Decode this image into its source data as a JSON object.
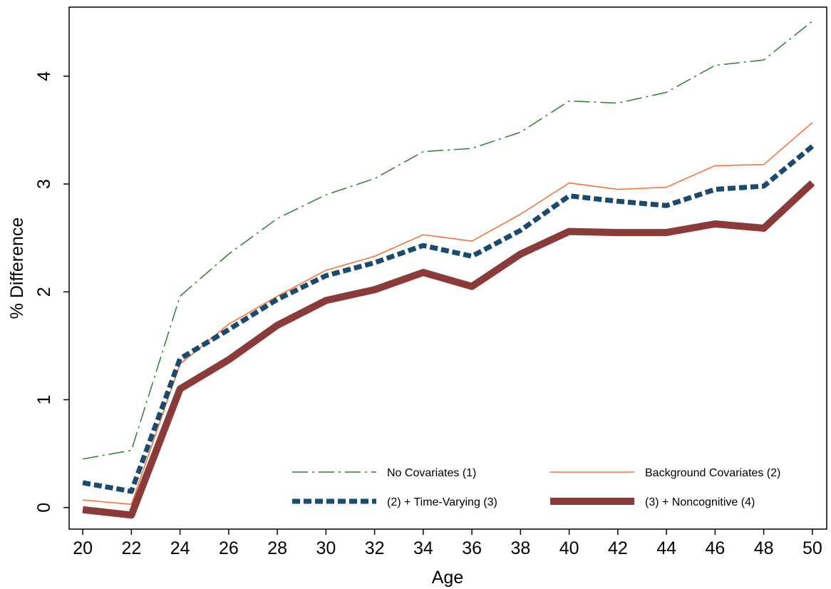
{
  "chart_data": {
    "type": "line",
    "x_label": "Age",
    "y_label": "% Difference",
    "x": [
      20,
      22,
      24,
      26,
      28,
      30,
      32,
      34,
      36,
      38,
      40,
      42,
      44,
      46,
      48,
      50
    ],
    "series": [
      {
        "name": "No Covariates (1)",
        "color": "#2e7d32",
        "values": [
          0.45,
          0.53,
          1.96,
          2.35,
          2.68,
          2.9,
          3.05,
          3.3,
          3.33,
          3.48,
          3.77,
          3.75,
          3.85,
          4.1,
          4.15,
          4.51
        ]
      },
      {
        "name": "Background Covariates (2)",
        "color": "#f4743b",
        "values": [
          0.07,
          0.03,
          1.33,
          1.7,
          1.96,
          2.2,
          2.33,
          2.53,
          2.47,
          2.72,
          3.01,
          2.95,
          2.97,
          3.17,
          3.18,
          3.57
        ]
      },
      {
        "name": "(2) + Time-Varying (3)",
        "color": "#1a4a6e",
        "values": [
          0.23,
          0.15,
          1.38,
          1.65,
          1.93,
          2.15,
          2.27,
          2.43,
          2.33,
          2.57,
          2.89,
          2.84,
          2.8,
          2.95,
          2.98,
          3.35
        ]
      },
      {
        "name": "(3) + Noncognitive (4)",
        "color": "#8b3a3a",
        "values": [
          -0.02,
          -0.07,
          1.1,
          1.37,
          1.69,
          1.92,
          2.02,
          2.18,
          2.05,
          2.35,
          2.56,
          2.55,
          2.55,
          2.63,
          2.59,
          3.01
        ]
      }
    ],
    "xlim": [
      19.44,
      50.59
    ],
    "ylim": [
      -0.2,
      4.64
    ],
    "xticks": [
      20,
      22,
      24,
      26,
      28,
      30,
      32,
      34,
      36,
      38,
      40,
      42,
      44,
      46,
      48,
      50
    ],
    "yticks": [
      0,
      1,
      2,
      3,
      4
    ],
    "grid": false,
    "legend": "lower right"
  }
}
